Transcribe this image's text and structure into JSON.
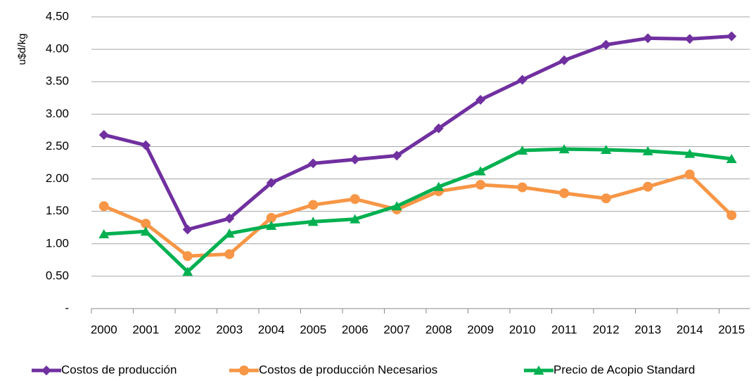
{
  "chart_data": {
    "type": "line",
    "y_label": "u$d/kg",
    "categories": [
      "2000",
      "2001",
      "2002",
      "2003",
      "2004",
      "2005",
      "2006",
      "2007",
      "2008",
      "2009",
      "2010",
      "2011",
      "2012",
      "2013",
      "2014",
      "2015"
    ],
    "series": [
      {
        "name": "Costos de producción",
        "color": "#7030a0",
        "marker": "diamond",
        "values": [
          2.68,
          2.52,
          1.22,
          1.39,
          1.94,
          2.24,
          2.3,
          2.36,
          2.78,
          3.22,
          3.53,
          3.83,
          4.07,
          4.17,
          4.16,
          4.2
        ]
      },
      {
        "name": "Costos de producción Necesarios",
        "color": "#f79646",
        "marker": "circle",
        "values": [
          1.58,
          1.31,
          0.81,
          0.84,
          1.4,
          1.6,
          1.69,
          1.53,
          1.81,
          1.91,
          1.87,
          1.78,
          1.7,
          1.88,
          2.07,
          1.44
        ]
      },
      {
        "name": "Precio de Acopio Standard",
        "color": "#00b050",
        "marker": "triangle",
        "values": [
          1.15,
          1.19,
          0.57,
          1.16,
          1.28,
          1.34,
          1.38,
          1.58,
          1.88,
          2.12,
          2.44,
          2.46,
          2.45,
          2.43,
          2.39,
          2.31
        ]
      }
    ],
    "ylim": [
      0,
      4.5
    ],
    "yticks": [
      {
        "value": 0,
        "label": "-"
      },
      {
        "value": 0.5,
        "label": "0.50"
      },
      {
        "value": 1,
        "label": "1.00"
      },
      {
        "value": 1.5,
        "label": "1.50"
      },
      {
        "value": 2,
        "label": "2.00"
      },
      {
        "value": 2.5,
        "label": "2.50"
      },
      {
        "value": 3,
        "label": "3.00"
      },
      {
        "value": 3.5,
        "label": "3.50"
      },
      {
        "value": 4,
        "label": "4.00"
      },
      {
        "value": 4.5,
        "label": "4.50"
      }
    ],
    "grid": true,
    "legend": "bottom"
  }
}
